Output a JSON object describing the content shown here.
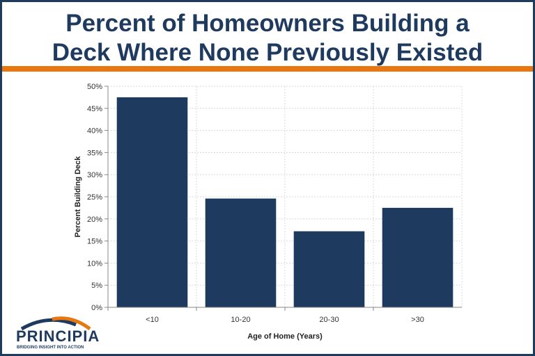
{
  "title_lines": [
    "Percent of Homeowners Building a",
    "Deck Where None Previously Existed"
  ],
  "colors": {
    "title": "#1f3a5f",
    "bar": "#1f3a5f",
    "rule": "#e8770f",
    "grid": "#d9d9d9"
  },
  "chart_data": {
    "type": "bar",
    "categories": [
      "<10",
      "10-20",
      "20-30",
      ">30"
    ],
    "values": [
      47.5,
      24.6,
      17.2,
      22.5
    ],
    "xlabel": "Age of Home (Years)",
    "ylabel": "Percent Building Deck",
    "ylim": [
      0,
      50
    ],
    "yticks": [
      0,
      5,
      10,
      15,
      20,
      25,
      30,
      35,
      40,
      45,
      50
    ],
    "ytick_labels": [
      "0%",
      "5%",
      "10%",
      "15%",
      "20%",
      "25%",
      "30%",
      "35%",
      "40%",
      "45%",
      "50%"
    ],
    "grid": true
  },
  "logo": {
    "name": "PRINCIPIA",
    "tagline": "BRIDGING INSIGHT INTO ACTION"
  }
}
